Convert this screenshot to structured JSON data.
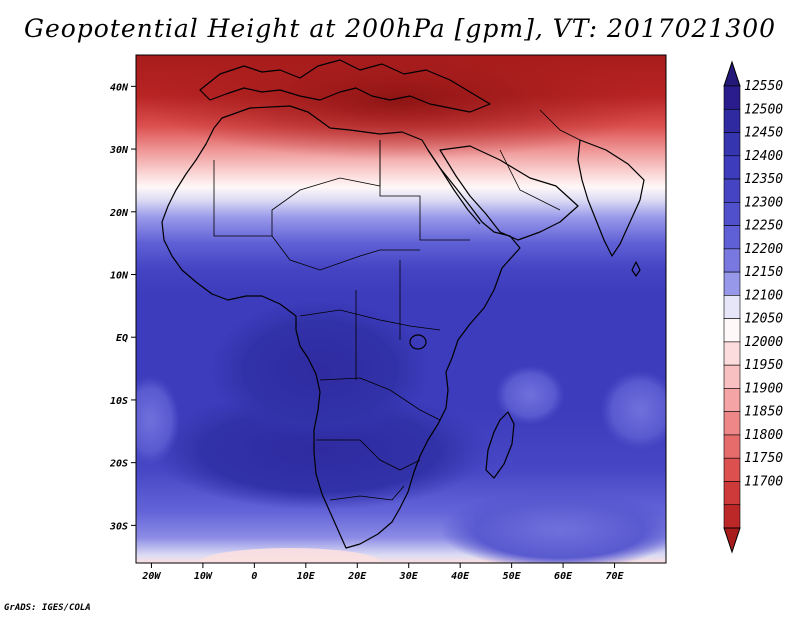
{
  "title": "Geopotential Height at 200hPa [gpm], VT: 2017021300",
  "footer": "GrADS: IGES/COLA",
  "map": {
    "lon_range": [
      -23,
      80
    ],
    "lat_range": [
      -36,
      45
    ],
    "x_tick_labels": [
      "20W",
      "10W",
      "0",
      "10E",
      "20E",
      "30E",
      "40E",
      "50E",
      "60E",
      "70E"
    ],
    "x_tick_values": [
      -20,
      -10,
      0,
      10,
      20,
      30,
      40,
      50,
      60,
      70
    ],
    "y_tick_labels": [
      "40N",
      "30N",
      "20N",
      "10N",
      "EQ",
      "10S",
      "20S",
      "30S"
    ],
    "y_tick_values": [
      40,
      30,
      20,
      10,
      0,
      -10,
      -20,
      -30
    ],
    "variable": "Geopotential Height at 200hPa",
    "units": "gpm",
    "valid_time": "2017021300"
  },
  "colorbar": {
    "labels": [
      "12550",
      "12500",
      "12450",
      "12400",
      "12350",
      "12300",
      "12250",
      "12200",
      "12150",
      "12100",
      "12050",
      "12000",
      "11950",
      "11900",
      "11850",
      "11800",
      "11750",
      "11700"
    ],
    "colors": [
      "#241878",
      "#2a1c8c",
      "#2f2aa0",
      "#3535b0",
      "#3c3cbc",
      "#4545c4",
      "#5050cc",
      "#6060d6",
      "#7878e0",
      "#9898ea",
      "#bcbcf2",
      "#e6e6f8",
      "#fff8f8",
      "#fcdcdc",
      "#f8c0c0",
      "#f4a4a4",
      "#ee8888",
      "#e66c6c",
      "#dc5050",
      "#ce3a3a",
      "#bc2828",
      "#a81c1c"
    ]
  }
}
